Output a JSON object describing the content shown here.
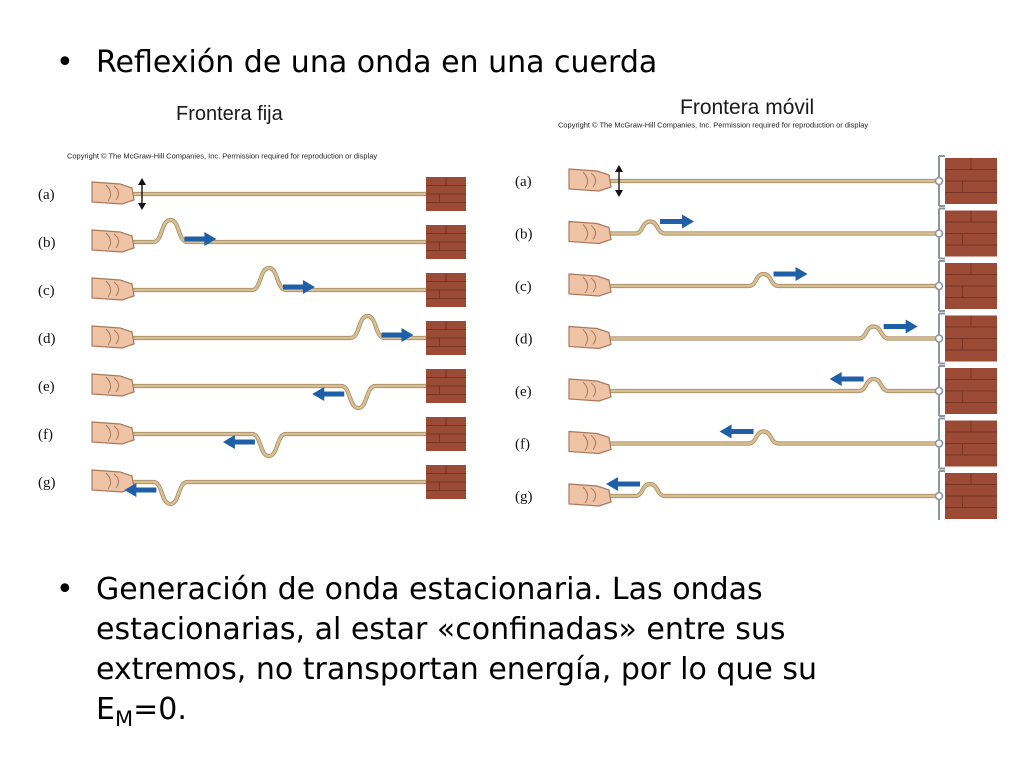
{
  "slide": {
    "bullet1": "Reflexión de una onda en una cuerda",
    "bullet2_main": "Generación de onda estacionaria. Las ondas estacionarias, al estar «confinadas» entre sus extremos, no transportan energía, por lo que su E",
    "bullet2_sub": "M",
    "bullet2_end": "=0.",
    "bullet_char": "•"
  },
  "figure_fixed": {
    "title": "Frontera fija",
    "copyright": "Copyright © The McGraw-Hill Companies, Inc. Permission required for reproduction or display",
    "boundary": "fixed",
    "panels": [
      {
        "label": "(a)",
        "pulse": "none",
        "pulse_position": 0,
        "direction": "none",
        "motion": "up-down"
      },
      {
        "label": "(b)",
        "pulse": "up",
        "pulse_position": 0.17,
        "direction": "right"
      },
      {
        "label": "(c)",
        "pulse": "up",
        "pulse_position": 0.49,
        "direction": "right"
      },
      {
        "label": "(d)",
        "pulse": "up",
        "pulse_position": 0.81,
        "direction": "right"
      },
      {
        "label": "(e)",
        "pulse": "down",
        "pulse_position": 0.78,
        "direction": "left"
      },
      {
        "label": "(f)",
        "pulse": "down",
        "pulse_position": 0.49,
        "direction": "left"
      },
      {
        "label": "(g)",
        "pulse": "down",
        "pulse_position": 0.17,
        "direction": "left"
      }
    ]
  },
  "figure_moving": {
    "title": "Frontera móvil",
    "copyright": "Copyright © The McGraw-Hill Companies, Inc. Permission required for reproduction or display",
    "boundary": "free",
    "panels": [
      {
        "label": "(a)",
        "pulse": "none",
        "pulse_position": 0,
        "direction": "none",
        "motion": "up-down"
      },
      {
        "label": "(b)",
        "pulse": "up",
        "pulse_position": 0.16,
        "direction": "right"
      },
      {
        "label": "(c)",
        "pulse": "up",
        "pulse_position": 0.49,
        "direction": "right"
      },
      {
        "label": "(d)",
        "pulse": "up",
        "pulse_position": 0.81,
        "direction": "right"
      },
      {
        "label": "(e)",
        "pulse": "up",
        "pulse_position": 0.81,
        "direction": "left"
      },
      {
        "label": "(f)",
        "pulse": "up",
        "pulse_position": 0.49,
        "direction": "left"
      },
      {
        "label": "(g)",
        "pulse": "up",
        "pulse_position": 0.16,
        "direction": "left"
      }
    ]
  },
  "colors": {
    "rope": "#d8bf93",
    "rope_edge": "#a88e64",
    "arrow": "#1f5fa8",
    "brick": "#9b4a35",
    "brick_dark": "#6d2f22",
    "hand": "#efc3a5",
    "hand_edge": "#a9785c",
    "ring": "#8c96a0"
  }
}
